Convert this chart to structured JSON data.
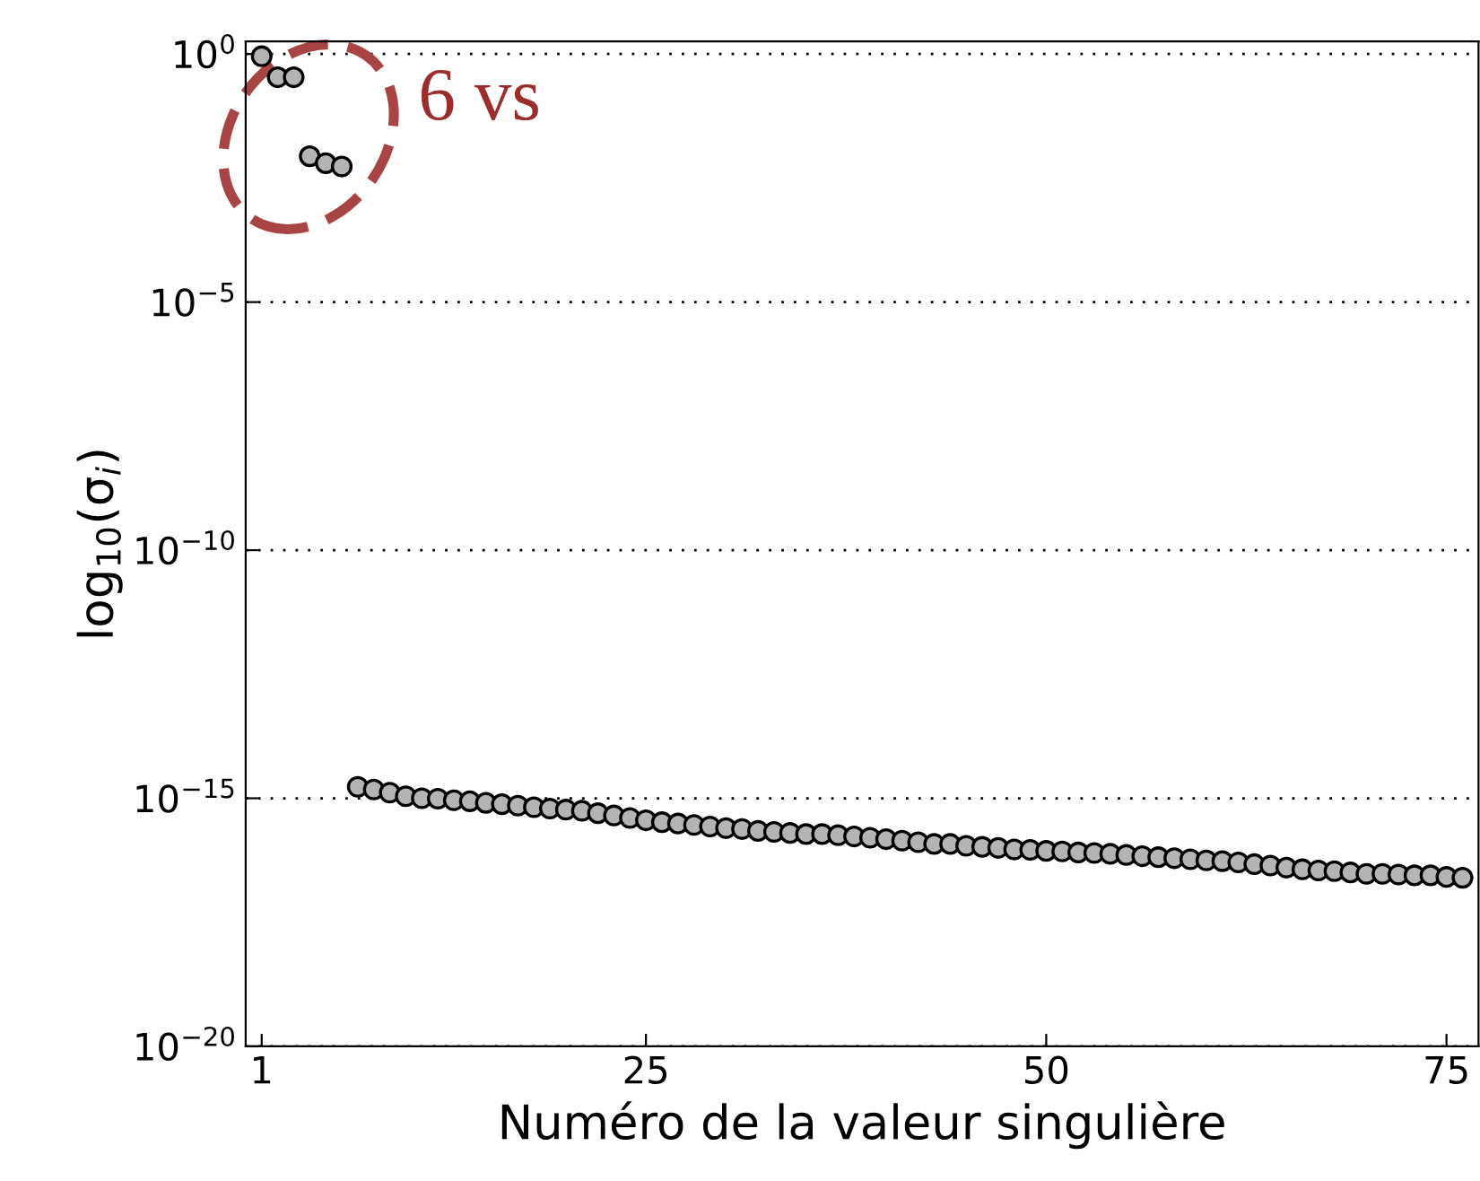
{
  "chart_data": {
    "type": "scatter",
    "xlabel": "Numéro de la valeur singulière",
    "ylabel": "log$_{10}$(σ$_{i}$)",
    "annotations": [
      "6 vs"
    ],
    "x": [
      1,
      2,
      3,
      4,
      5,
      6,
      7,
      8,
      9,
      10,
      11,
      12,
      13,
      14,
      15,
      16,
      17,
      18,
      19,
      20,
      21,
      22,
      23,
      24,
      25,
      26,
      27,
      28,
      29,
      30,
      31,
      32,
      33,
      34,
      35,
      36,
      37,
      38,
      39,
      40,
      41,
      42,
      43,
      44,
      45,
      46,
      47,
      48,
      49,
      50,
      51,
      52,
      53,
      54,
      55,
      56,
      57,
      58,
      59,
      60,
      61,
      62,
      63,
      64,
      65,
      66,
      67,
      68,
      69,
      70,
      71,
      72,
      73,
      74,
      75,
      76
    ],
    "series": [
      {
        "color": "#b4b4b4",
        "values": [
          0.9,
          0.34,
          0.34,
          0.0087,
          0.0063,
          0.0054,
          1.7e-15,
          1.5e-15,
          1.3e-15,
          1.1e-15,
          1e-15,
          9.8e-16,
          9.1e-16,
          8.7e-16,
          8.1e-16,
          7.6e-16,
          7.1e-16,
          6.6e-16,
          6.2e-16,
          5.9e-16,
          5.6e-16,
          5e-16,
          4.5e-16,
          4e-16,
          3.6e-16,
          3.3e-16,
          3.1e-16,
          2.9e-16,
          2.7e-16,
          2.5e-16,
          2.4e-16,
          2.2e-16,
          2.1e-16,
          2e-16,
          1.9e-16,
          1.9e-16,
          1.8e-16,
          1.7e-16,
          1.6e-16,
          1.5e-16,
          1.4e-16,
          1.3e-16,
          1.2e-16,
          1.2e-16,
          1.1e-16,
          1.05e-16,
          1e-16,
          9.3e-17,
          9.1e-17,
          8.7e-17,
          8.5e-17,
          8.1e-17,
          7.9e-17,
          7.6e-17,
          7.2e-17,
          6.8e-17,
          6.5e-17,
          6.2e-17,
          5.9e-17,
          5.6e-17,
          5.4e-17,
          5.1e-17,
          4.7e-17,
          4.4e-17,
          4e-17,
          3.7e-17,
          3.5e-17,
          3.4e-17,
          3.2e-17,
          3e-17,
          3e-17,
          2.9e-17,
          2.8e-17,
          2.8e-17,
          2.6e-17,
          2.5e-17
        ]
      }
    ],
    "log": "y",
    "xlim": [
      0,
      77
    ],
    "xticks": [
      1,
      25,
      50,
      75
    ],
    "ylim": [
      1e-20,
      1.8
    ],
    "yticks": [
      {
        "value": 1,
        "label": "10$^{0}$"
      },
      {
        "value": 1e-05,
        "label": "10$^{−5}$"
      },
      {
        "value": 1e-10,
        "label": "10$^{−10}$"
      },
      {
        "value": 1e-15,
        "label": "10$^{−15}$"
      },
      {
        "value": 1e-20,
        "label": "10$^{−20}$"
      }
    ],
    "grid": "y",
    "marker": "circle"
  }
}
